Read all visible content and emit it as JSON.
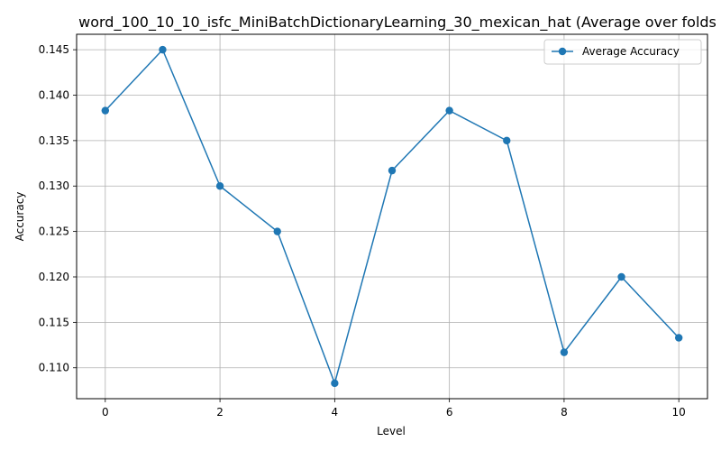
{
  "chart_data": {
    "type": "line",
    "title": "word_100_10_10_isfc_MiniBatchDictionaryLearning_30_mexican_hat (Average over folds",
    "xlabel": "Level",
    "ylabel": "Accuracy",
    "xlim": [
      -0.5,
      10.5
    ],
    "ylim": [
      0.1066,
      0.1467
    ],
    "xticks": [
      0,
      2,
      4,
      6,
      8,
      10
    ],
    "xtick_labels": [
      "0",
      "2",
      "4",
      "6",
      "8",
      "10"
    ],
    "yticks": [
      0.11,
      0.115,
      0.12,
      0.125,
      0.13,
      0.135,
      0.14,
      0.145
    ],
    "ytick_labels": [
      "0.110",
      "0.115",
      "0.120",
      "0.125",
      "0.130",
      "0.135",
      "0.140",
      "0.145"
    ],
    "grid": true,
    "legend_position": "top-right",
    "series": [
      {
        "name": "Average Accuracy",
        "color": "#1f77b4",
        "marker": "circle",
        "x": [
          0,
          1,
          2,
          3,
          4,
          5,
          6,
          7,
          8,
          9,
          10
        ],
        "y": [
          0.1383,
          0.145,
          0.13,
          0.125,
          0.1083,
          0.1317,
          0.1383,
          0.135,
          0.1117,
          0.12,
          0.1133
        ]
      }
    ]
  }
}
